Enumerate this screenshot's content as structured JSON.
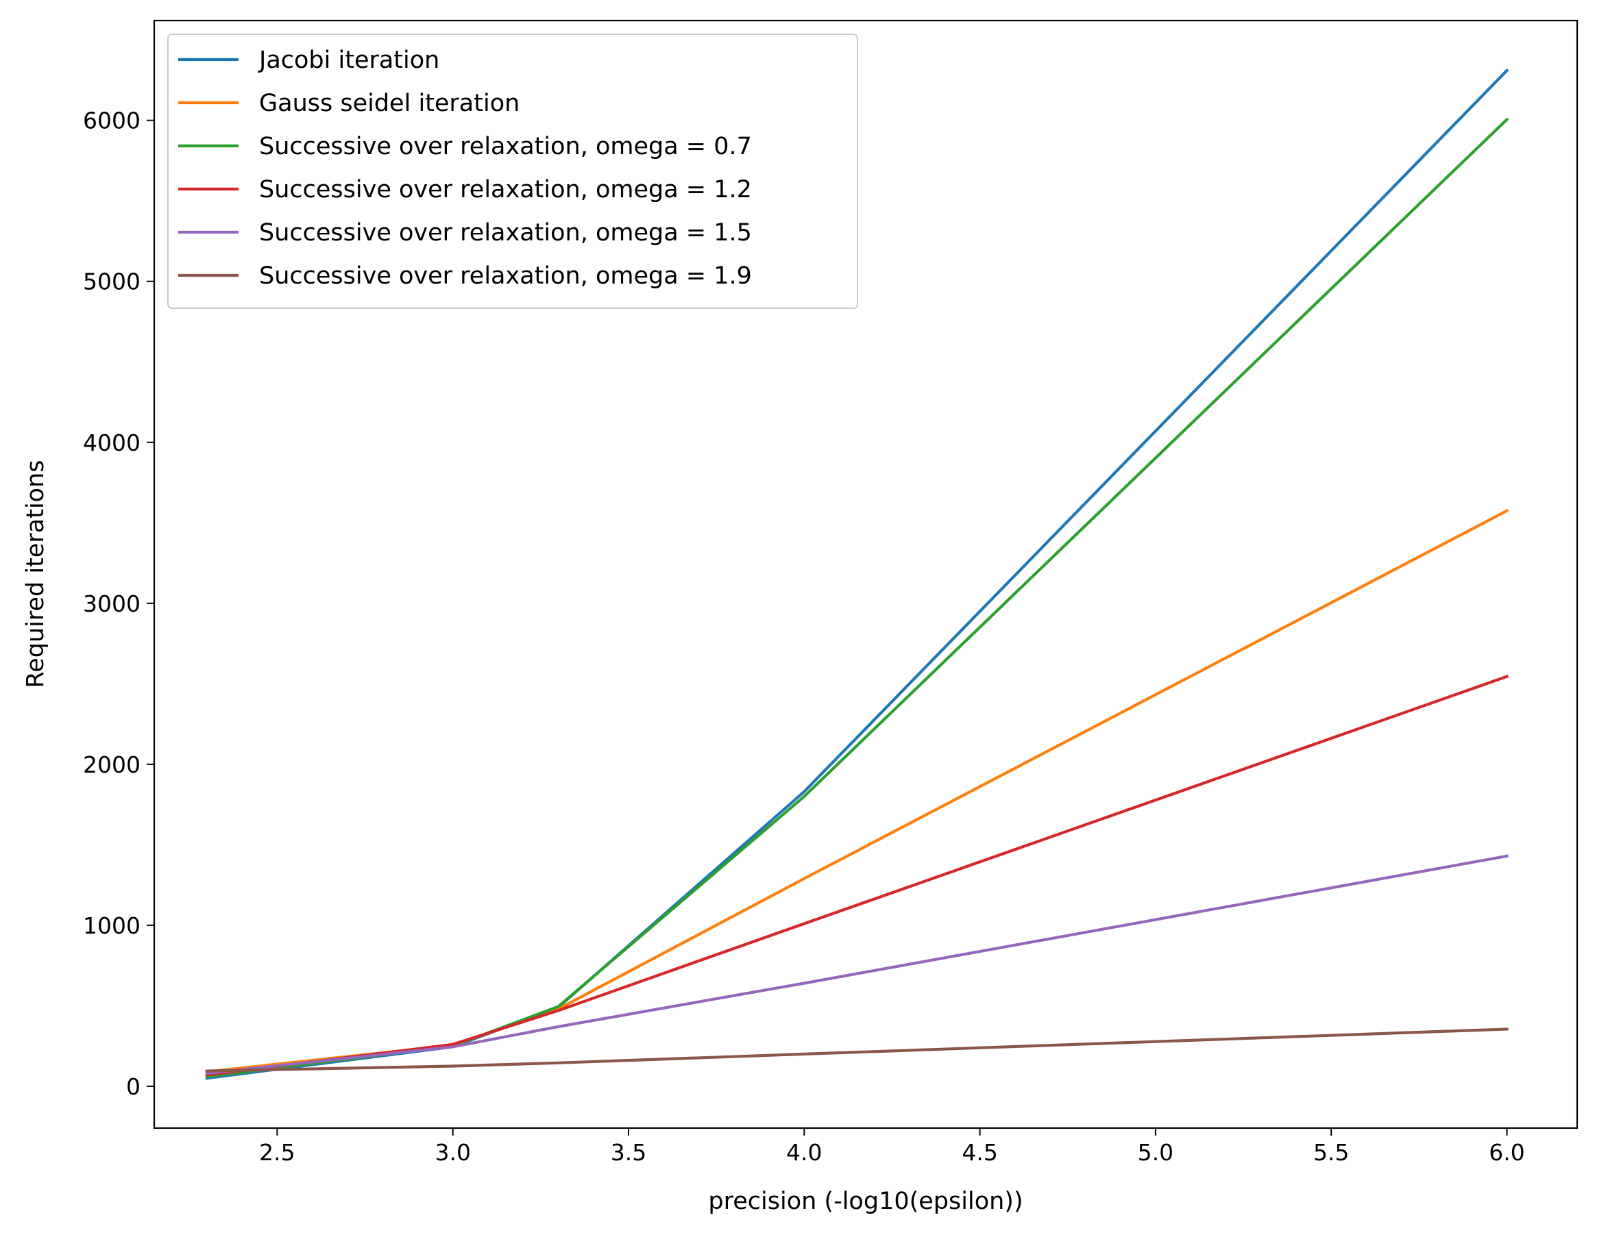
{
  "chart_data": {
    "type": "line",
    "xlabel": "precision (-log10(epsilon))",
    "ylabel": "Required iterations",
    "xlim": [
      2.15,
      6.2
    ],
    "ylim": [
      -260,
      6620
    ],
    "x_ticks": [
      2.5,
      3.0,
      3.5,
      4.0,
      4.5,
      5.0,
      5.5,
      6.0
    ],
    "x_tick_labels": [
      "2.5",
      "3.0",
      "3.5",
      "4.0",
      "4.5",
      "5.0",
      "5.5",
      "6.0"
    ],
    "y_ticks": [
      0,
      1000,
      2000,
      3000,
      4000,
      5000,
      6000
    ],
    "y_tick_labels": [
      "0",
      "1000",
      "2000",
      "3000",
      "4000",
      "5000",
      "6000"
    ],
    "grid": false,
    "legend_position": "top-left",
    "x": [
      2.3,
      3.0,
      3.3,
      4.0,
      6.0
    ],
    "series": [
      {
        "name": "Jacobi iteration",
        "color": "#1f77b4",
        "values": [
          50,
          245,
          490,
          1830,
          6310
        ]
      },
      {
        "name": "Gauss seidel iteration",
        "color": "#ff7f0e",
        "values": [
          90,
          255,
          480,
          1290,
          3575
        ]
      },
      {
        "name": "Successive over relaxation, omega = 0.7",
        "color": "#2ca02c",
        "values": [
          60,
          250,
          495,
          1800,
          6005
        ]
      },
      {
        "name": "Successive over relaxation, omega = 1.2",
        "color": "#d62728",
        "values": [
          70,
          260,
          470,
          1010,
          2545
        ]
      },
      {
        "name": "Successive over relaxation, omega = 1.5",
        "color": "#9467bd",
        "values": [
          80,
          245,
          370,
          640,
          1430
        ]
      },
      {
        "name": "Successive over relaxation, omega = 1.9",
        "color": "#8c564b",
        "values": [
          95,
          125,
          145,
          200,
          355
        ]
      }
    ]
  }
}
